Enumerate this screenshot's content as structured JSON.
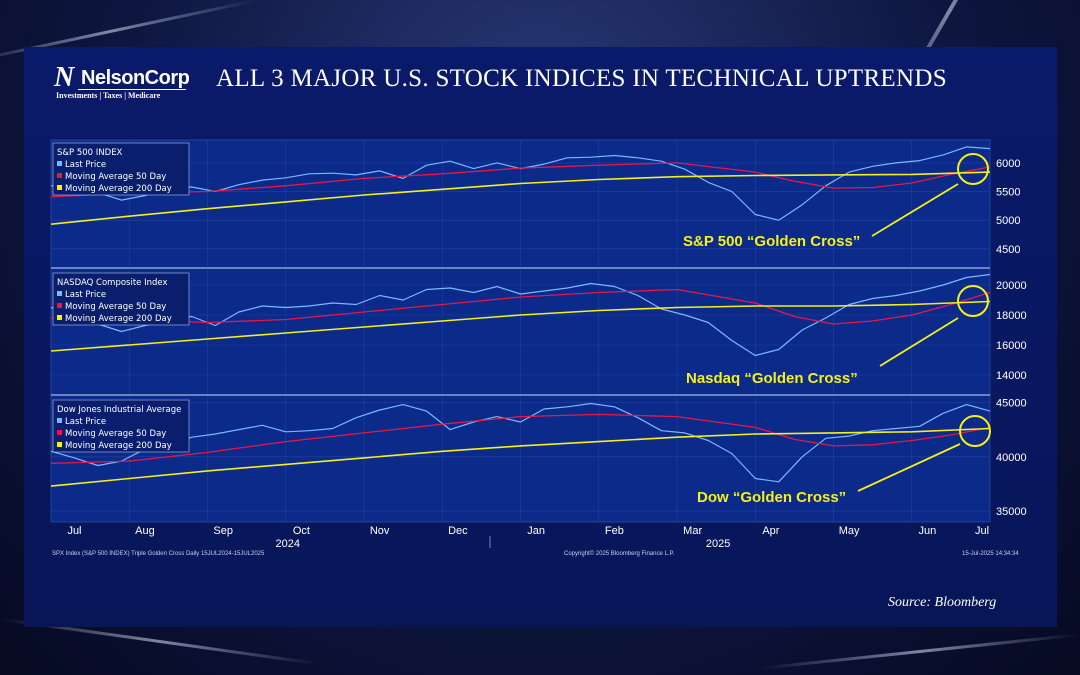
{
  "logo": {
    "name": "NelsonCorp",
    "tagline": "Investments | Taxes | Medicare"
  },
  "title": "ALL 3 MAJOR U.S. STOCK INDICES IN TECHNICAL UPTRENDS",
  "source": "Source: Bloomberg",
  "footer": {
    "left": "SPX Index (S&P 500 INDEX) Triple Golden Cross  Daily 15JUL2024-15JUL2025",
    "center": "Copyright© 2025 Bloomberg Finance L.P.",
    "right": "15-Jul-2025 14:34:34"
  },
  "colors": {
    "last_price": "#7ab8ff",
    "ma50": "#e8174a",
    "ma200": "#f5ef1a",
    "annotation": "#f5ef1a"
  },
  "chart_data": [
    {
      "type": "line",
      "title": "S&P 500 INDEX",
      "annotation": "S&P 500 “Golden Cross”",
      "ylim": [
        4200,
        6400
      ],
      "yticks": [
        4500,
        5000,
        5500,
        6000
      ],
      "legend": [
        "Last Price",
        "Moving Average 50 Day",
        "Moving Average 200 Day"
      ],
      "series": [
        {
          "name": "Last Price",
          "x": [
            0,
            0.3,
            0.6,
            0.9,
            1.2,
            1.5,
            1.8,
            2.1,
            2.4,
            2.7,
            3,
            3.3,
            3.6,
            3.9,
            4.2,
            4.5,
            4.8,
            5.1,
            5.4,
            5.7,
            6,
            6.3,
            6.6,
            6.9,
            7.2,
            7.5,
            7.8,
            8.1,
            8.4,
            8.7,
            9,
            9.3,
            9.6,
            9.9,
            10.2,
            10.5,
            10.8,
            11.1,
            11.4,
            11.7,
            12
          ],
          "values": [
            5600,
            5590,
            5480,
            5350,
            5430,
            5560,
            5580,
            5500,
            5620,
            5700,
            5740,
            5810,
            5820,
            5790,
            5860,
            5730,
            5960,
            6030,
            5900,
            6000,
            5900,
            5980,
            6090,
            6100,
            6130,
            6090,
            6030,
            5890,
            5660,
            5500,
            5100,
            5000,
            5270,
            5600,
            5840,
            5940,
            6000,
            6040,
            6140,
            6280,
            6250
          ]
        },
        {
          "name": "Moving Average 50 Day",
          "x": [
            0,
            1,
            2,
            3,
            4,
            5,
            6,
            7,
            8,
            9,
            9.5,
            10,
            10.5,
            11,
            11.5,
            12
          ],
          "values": [
            5410,
            5470,
            5500,
            5600,
            5730,
            5810,
            5910,
            5960,
            6000,
            5840,
            5680,
            5560,
            5570,
            5650,
            5800,
            5930
          ]
        },
        {
          "name": "Moving Average 200 Day",
          "x": [
            0,
            1,
            2,
            3,
            4,
            5,
            6,
            7,
            8,
            9,
            10,
            11,
            12
          ],
          "values": [
            4930,
            5070,
            5200,
            5320,
            5440,
            5540,
            5640,
            5710,
            5760,
            5780,
            5790,
            5800,
            5840
          ]
        }
      ]
    },
    {
      "type": "line",
      "title": "NASDAQ Composite Index",
      "annotation": "Nasdaq “Golden Cross”",
      "ylim": [
        12800,
        21000
      ],
      "yticks": [
        14000,
        16000,
        18000,
        20000
      ],
      "legend": [
        "Last Price",
        "Moving Average 50 Day",
        "Moving Average 200 Day"
      ],
      "series": [
        {
          "name": "Last Price",
          "x": [
            0,
            0.3,
            0.6,
            0.9,
            1.2,
            1.5,
            1.8,
            2.1,
            2.4,
            2.7,
            3,
            3.3,
            3.6,
            3.9,
            4.2,
            4.5,
            4.8,
            5.1,
            5.4,
            5.7,
            6,
            6.3,
            6.6,
            6.9,
            7.2,
            7.5,
            7.8,
            8.1,
            8.4,
            8.7,
            9,
            9.3,
            9.6,
            9.9,
            10.2,
            10.5,
            10.8,
            11.1,
            11.4,
            11.7,
            12
          ],
          "values": [
            18500,
            18100,
            17400,
            16900,
            17300,
            17600,
            17900,
            17300,
            18200,
            18600,
            18500,
            18600,
            18800,
            18700,
            19300,
            19000,
            19700,
            19800,
            19500,
            19900,
            19400,
            19600,
            19800,
            20100,
            19900,
            19300,
            18400,
            18000,
            17500,
            16300,
            15300,
            15700,
            17000,
            17800,
            18700,
            19100,
            19300,
            19600,
            20000,
            20500,
            20700
          ]
        },
        {
          "name": "Moving Average 50 Day",
          "x": [
            0,
            1,
            2,
            3,
            4,
            5,
            6,
            7,
            8,
            9,
            9.5,
            10,
            10.5,
            11,
            11.5,
            12
          ],
          "values": [
            17800,
            17700,
            17500,
            17700,
            18200,
            18700,
            19200,
            19500,
            19700,
            18800,
            17900,
            17400,
            17600,
            18000,
            18700,
            19500
          ]
        },
        {
          "name": "Moving Average 200 Day",
          "x": [
            0,
            1,
            2,
            3,
            4,
            5,
            6,
            7,
            8,
            9,
            10,
            11,
            12
          ],
          "values": [
            15600,
            16000,
            16400,
            16800,
            17200,
            17600,
            18000,
            18300,
            18500,
            18600,
            18600,
            18700,
            18900
          ]
        }
      ]
    },
    {
      "type": "line",
      "title": "Dow Jones Industrial Average",
      "annotation": "Dow “Golden Cross”",
      "ylim": [
        34000,
        45500
      ],
      "yticks": [
        35000,
        40000,
        45000
      ],
      "legend": [
        "Last Price",
        "Moving Average 50 Day",
        "Moving Average 200 Day"
      ],
      "series": [
        {
          "name": "Last Price",
          "x": [
            0,
            0.3,
            0.6,
            0.9,
            1.2,
            1.5,
            1.8,
            2.1,
            2.4,
            2.7,
            3,
            3.3,
            3.6,
            3.9,
            4.2,
            4.5,
            4.8,
            5.1,
            5.4,
            5.7,
            6,
            6.3,
            6.6,
            6.9,
            7.2,
            7.5,
            7.8,
            8.1,
            8.4,
            8.7,
            9,
            9.3,
            9.6,
            9.9,
            10.2,
            10.5,
            10.8,
            11.1,
            11.4,
            11.7,
            12
          ],
          "values": [
            40500,
            39900,
            39200,
            39600,
            40700,
            41000,
            41800,
            42100,
            42500,
            42900,
            42300,
            42400,
            42600,
            43600,
            44300,
            44800,
            44200,
            42500,
            43200,
            43700,
            43200,
            44400,
            44600,
            44900,
            44600,
            43600,
            42400,
            42200,
            41500,
            40300,
            38000,
            37700,
            40000,
            41700,
            41900,
            42400,
            42600,
            42800,
            44000,
            44800,
            44200
          ]
        },
        {
          "name": "Moving Average 50 Day",
          "x": [
            0,
            1,
            2,
            3,
            4,
            5,
            6,
            7,
            8,
            9,
            9.5,
            10,
            10.5,
            11,
            11.5,
            12
          ],
          "values": [
            39400,
            39600,
            40400,
            41400,
            42200,
            43000,
            43700,
            43900,
            43700,
            42700,
            41600,
            41000,
            41100,
            41500,
            42000,
            42700
          ]
        },
        {
          "name": "Moving Average 200 Day",
          "x": [
            0,
            1,
            2,
            3,
            4,
            5,
            6,
            7,
            8,
            9,
            10,
            11,
            12
          ],
          "values": [
            37300,
            38000,
            38700,
            39300,
            39900,
            40500,
            41000,
            41400,
            41800,
            42100,
            42200,
            42300,
            42600
          ]
        }
      ]
    }
  ],
  "x_axis": {
    "month_labels": [
      "Jul",
      "Aug",
      "Sep",
      "Oct",
      "Nov",
      "Dec",
      "Jan",
      "Feb",
      "Mar",
      "Apr",
      "May",
      "Jun",
      "Jul"
    ],
    "year_labels": [
      {
        "label": "2024",
        "at": 3
      },
      {
        "label": "2025",
        "at": 8.5
      }
    ]
  }
}
